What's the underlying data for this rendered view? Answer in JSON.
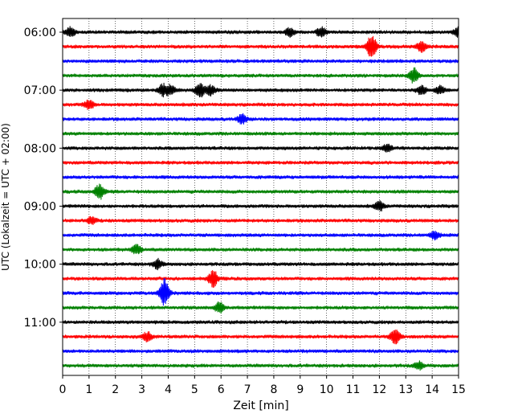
{
  "chart_data": {
    "type": "line",
    "title": "",
    "xlabel": "Zeit  [min]",
    "ylabel": "UTC (Lokalzeit = UTC + 02:00)",
    "xlim": [
      0,
      15
    ],
    "x_ticks": [
      0,
      1,
      2,
      3,
      4,
      5,
      6,
      7,
      8,
      9,
      10,
      11,
      12,
      13,
      14,
      15
    ],
    "x_tick_labels": [
      "0",
      "1",
      "2",
      "3",
      "4",
      "5",
      "6",
      "7",
      "8",
      "9",
      "10",
      "11",
      "12",
      "13",
      "14",
      "15"
    ],
    "y_tick_labels": [
      "06:00",
      "07:00",
      "08:00",
      "09:00",
      "10:00",
      "11:00"
    ],
    "y_tick_rows": [
      0,
      4,
      8,
      12,
      16,
      20
    ],
    "vertical_grid": true,
    "grid_style": "dotted",
    "color_cycle": [
      "#000000",
      "#ff0000",
      "#0000ff",
      "#008000"
    ],
    "series": [
      {
        "start": "06:00",
        "row": 0,
        "events": [
          {
            "t": 0.3,
            "amp": 0.5
          },
          {
            "t": 8.6,
            "amp": 0.5
          },
          {
            "t": 9.8,
            "amp": 0.5
          },
          {
            "t": 15.0,
            "amp": 0.5
          }
        ]
      },
      {
        "start": "06:15",
        "row": 1,
        "events": [
          {
            "t": 11.7,
            "amp": 1.4
          },
          {
            "t": 13.6,
            "amp": 0.6
          }
        ]
      },
      {
        "start": "06:30",
        "row": 2,
        "events": []
      },
      {
        "start": "06:45",
        "row": 3,
        "events": [
          {
            "t": 13.3,
            "amp": 0.8
          }
        ]
      },
      {
        "start": "07:00",
        "row": 4,
        "events": [
          {
            "t": 3.8,
            "amp": 0.6
          },
          {
            "t": 4.1,
            "amp": 0.5
          },
          {
            "t": 5.2,
            "amp": 0.8
          },
          {
            "t": 5.6,
            "amp": 0.5
          },
          {
            "t": 13.6,
            "amp": 0.5
          },
          {
            "t": 14.3,
            "amp": 0.4
          }
        ]
      },
      {
        "start": "07:15",
        "row": 5,
        "events": [
          {
            "t": 1.0,
            "amp": 0.5
          }
        ]
      },
      {
        "start": "07:30",
        "row": 6,
        "events": [
          {
            "t": 6.8,
            "amp": 0.5
          }
        ]
      },
      {
        "start": "07:45",
        "row": 7,
        "events": []
      },
      {
        "start": "08:00",
        "row": 8,
        "events": [
          {
            "t": 12.3,
            "amp": 0.4
          }
        ]
      },
      {
        "start": "08:15",
        "row": 9,
        "events": []
      },
      {
        "start": "08:30",
        "row": 10,
        "events": []
      },
      {
        "start": "08:45",
        "row": 11,
        "events": [
          {
            "t": 1.4,
            "amp": 0.8
          }
        ]
      },
      {
        "start": "09:00",
        "row": 12,
        "events": [
          {
            "t": 12.0,
            "amp": 0.5
          }
        ]
      },
      {
        "start": "09:15",
        "row": 13,
        "events": [
          {
            "t": 1.1,
            "amp": 0.4
          }
        ]
      },
      {
        "start": "09:30",
        "row": 14,
        "events": [
          {
            "t": 14.1,
            "amp": 0.4
          }
        ]
      },
      {
        "start": "09:45",
        "row": 15,
        "events": [
          {
            "t": 2.8,
            "amp": 0.5
          }
        ]
      },
      {
        "start": "10:00",
        "row": 16,
        "events": [
          {
            "t": 3.6,
            "amp": 0.5
          }
        ]
      },
      {
        "start": "10:15",
        "row": 17,
        "events": [
          {
            "t": 5.7,
            "amp": 0.9
          }
        ]
      },
      {
        "start": "10:30",
        "row": 18,
        "events": [
          {
            "t": 3.85,
            "amp": 1.6
          }
        ]
      },
      {
        "start": "10:45",
        "row": 19,
        "events": [
          {
            "t": 5.95,
            "amp": 0.6
          }
        ]
      },
      {
        "start": "11:00",
        "row": 20,
        "events": []
      },
      {
        "start": "11:15",
        "row": 21,
        "events": [
          {
            "t": 3.2,
            "amp": 0.5
          },
          {
            "t": 12.6,
            "amp": 0.8
          }
        ]
      },
      {
        "start": "11:30",
        "row": 22,
        "events": []
      },
      {
        "start": "11:45",
        "row": 23,
        "events": [
          {
            "t": 13.5,
            "amp": 0.4
          }
        ]
      }
    ]
  }
}
